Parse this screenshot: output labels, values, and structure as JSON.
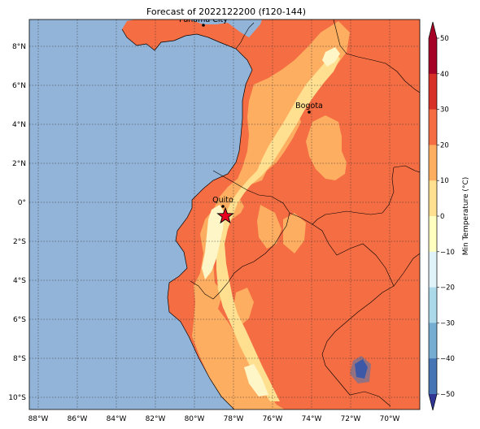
{
  "title": "Forecast of 2022122200 (f120-144)",
  "colorbar": {
    "label": "Min Temperature (°C)",
    "ticks": [
      "50",
      "40",
      "30",
      "20",
      "10",
      "0",
      "−10",
      "−20",
      "−30",
      "−40",
      "−50"
    ],
    "colors": [
      "#a50026",
      "#d73027",
      "#f46d43",
      "#fdae61",
      "#fee090",
      "#ffffbf",
      "#e0f3f8",
      "#abd9e9",
      "#74add1",
      "#4575b4",
      "#313695"
    ],
    "extend": "both"
  },
  "axes": {
    "lat_labels": [
      "8°N",
      "6°N",
      "4°N",
      "2°N",
      "0°",
      "2°S",
      "4°S",
      "6°S",
      "8°S",
      "10°S"
    ],
    "lon_labels": [
      "88°W",
      "86°W",
      "84°W",
      "82°W",
      "80°W",
      "78°W",
      "76°W",
      "74°W",
      "72°W",
      "70°W"
    ],
    "grid": true
  },
  "cities": [
    {
      "name": "Panama City"
    },
    {
      "name": "Bogota"
    },
    {
      "name": "Quito"
    }
  ],
  "marker": {
    "type": "star",
    "color": "#e8001f"
  },
  "colors": {
    "ocean": "#92b4d9",
    "field_warm": "#f46d43",
    "field_mild": "#fdae61",
    "field_cool": "#fee090",
    "field_cold": "#fff6c7",
    "field_hot": "#d73027"
  }
}
